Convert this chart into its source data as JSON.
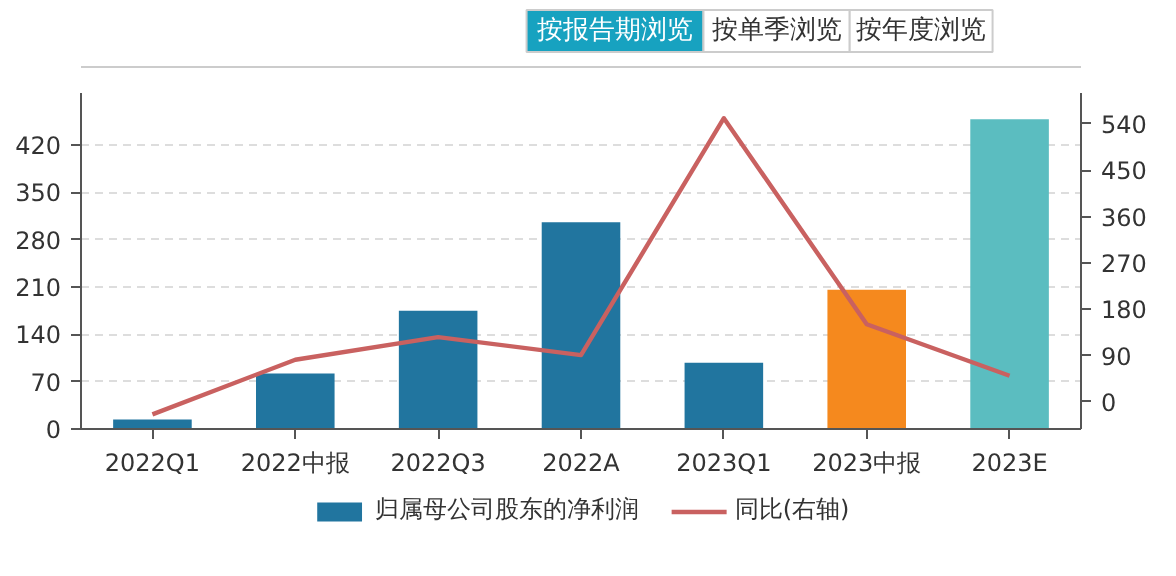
{
  "chart_data": {
    "type": "bar",
    "annotations": [
      "按报告期浏览",
      "按单季浏览",
      "按年度浏览"
    ],
    "categories": [
      "2022Q1",
      "2022中报",
      "2022Q3",
      "2022A",
      "2023Q1",
      "2023中报",
      "2023E"
    ],
    "series": [
      {
        "name": "归属母公司股东的净利润",
        "color": "#21759f",
        "colors": [
          "#21759f",
          "#21759f",
          "#21759f",
          "#21759f",
          "#21759f",
          "#f5891e",
          "#5bbdc0"
        ],
        "values": [
          14,
          82,
          175,
          306,
          98,
          206,
          458
        ]
      },
      {
        "name": "同比(右轴)",
        "type": "line",
        "axis": "y2",
        "color": "#c96160",
        "values": [
          -24,
          82,
          126,
          91,
          551,
          151,
          51
        ]
      }
    ],
    "ylim": [
      0,
      497
    ],
    "yticks": [
      0,
      70,
      140,
      210,
      280,
      350,
      420
    ],
    "y2lim": [
      -52.5,
      600
    ],
    "y2ticks": [
      0,
      90,
      180,
      270,
      360,
      450,
      540
    ],
    "grid": "y",
    "legend": "bottom"
  }
}
